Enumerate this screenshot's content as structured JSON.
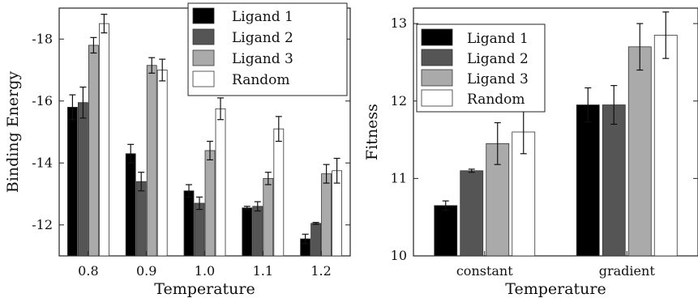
{
  "colors": {
    "ligand1": "#000000",
    "ligand2": "#555555",
    "ligand3": "#aaaaaa",
    "random": "#ffffff",
    "axis": "#222222"
  },
  "chart_data": [
    {
      "type": "bar",
      "title": "",
      "xlabel": "Temperature",
      "ylabel": "Binding Energy",
      "categories": [
        "0.8",
        "0.9",
        "1.0",
        "1.1",
        "1.2"
      ],
      "ylim": [
        -11,
        -19
      ],
      "yticks": [
        -12,
        -14,
        -16,
        -18
      ],
      "ytick_labels": [
        "-12",
        "-14",
        "-16",
        "-18"
      ],
      "y_axis_reversed": true,
      "legend_position": "top-center",
      "grid": false,
      "series": [
        {
          "name": "Ligand 1",
          "values": [
            -15.8,
            -14.3,
            -13.1,
            -12.55,
            -11.55
          ],
          "errors": [
            0.4,
            0.3,
            0.2,
            0.05,
            0.15
          ]
        },
        {
          "name": "Ligand 2",
          "values": [
            -15.95,
            -13.4,
            -12.7,
            -12.6,
            -12.05
          ],
          "errors": [
            0.5,
            0.3,
            0.2,
            0.15,
            0.03
          ]
        },
        {
          "name": "Ligand 3",
          "values": [
            -17.8,
            -17.15,
            -14.4,
            -13.5,
            -13.65
          ],
          "errors": [
            0.25,
            0.25,
            0.3,
            0.2,
            0.3
          ]
        },
        {
          "name": "Random",
          "values": [
            -18.5,
            -17.0,
            -15.75,
            -15.1,
            -13.75
          ],
          "errors": [
            0.3,
            0.35,
            0.35,
            0.4,
            0.4
          ]
        }
      ]
    },
    {
      "type": "bar",
      "title": "",
      "xlabel": "Temperature",
      "ylabel": "Fitness",
      "categories": [
        "constant",
        "gradient"
      ],
      "ylim": [
        10,
        13.2
      ],
      "yticks": [
        10,
        11,
        12,
        13
      ],
      "ytick_labels": [
        "10",
        "11",
        "12",
        "13"
      ],
      "legend_position": "top-left",
      "grid": false,
      "series": [
        {
          "name": "Ligand 1",
          "values": [
            10.65,
            11.95
          ],
          "errors": [
            0.06,
            0.22
          ]
        },
        {
          "name": "Ligand 2",
          "values": [
            11.1,
            11.95
          ],
          "errors": [
            0.02,
            0.25
          ]
        },
        {
          "name": "Ligand 3",
          "values": [
            11.45,
            12.7
          ],
          "errors": [
            0.27,
            0.3
          ]
        },
        {
          "name": "Random",
          "values": [
            11.6,
            12.85
          ],
          "errors": [
            0.28,
            0.3
          ]
        }
      ]
    }
  ]
}
